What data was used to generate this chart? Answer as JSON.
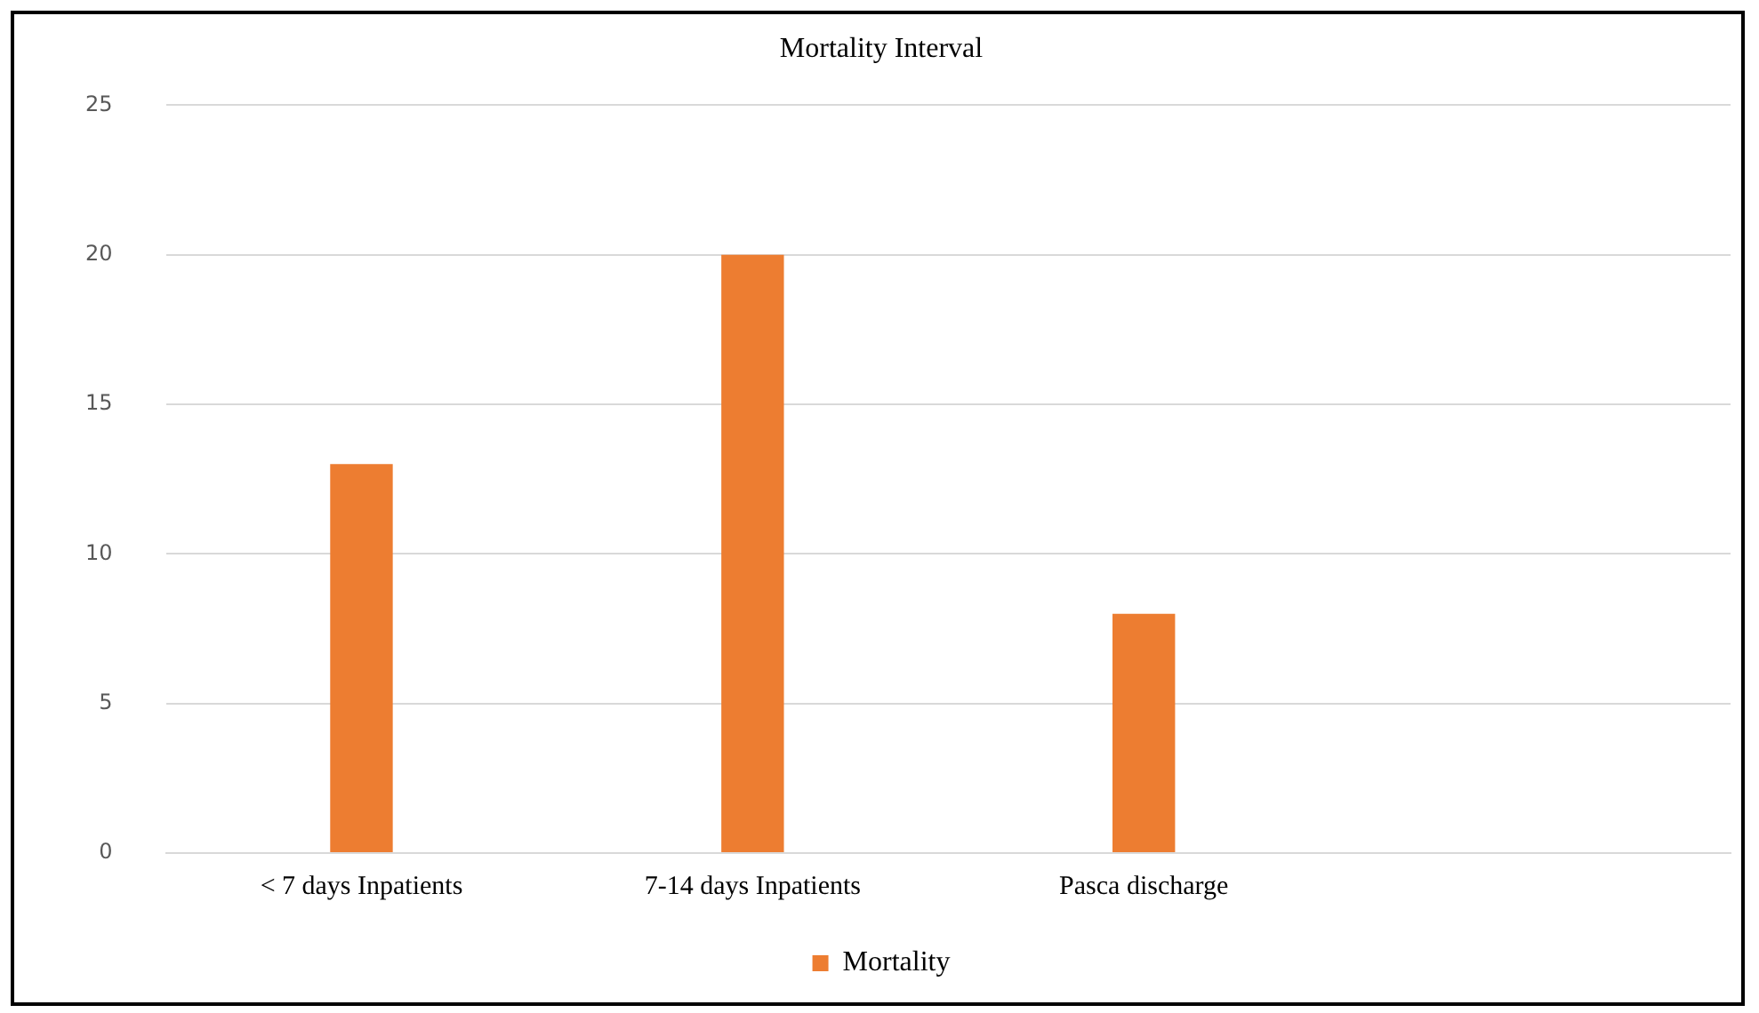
{
  "chart_data": {
    "type": "bar",
    "title": "Mortality Interval",
    "categories": [
      "< 7 days Inpatients",
      "7-14 days Inpatients",
      "Pasca discharge",
      null
    ],
    "series": [
      {
        "name": "Mortality",
        "color": "#ed7d31",
        "values": [
          13,
          20,
          8,
          null
        ]
      }
    ],
    "ylim": [
      0,
      25
    ],
    "yticks": [
      0,
      5,
      10,
      15,
      20,
      25
    ],
    "grid": "y",
    "legend": "bottom"
  }
}
